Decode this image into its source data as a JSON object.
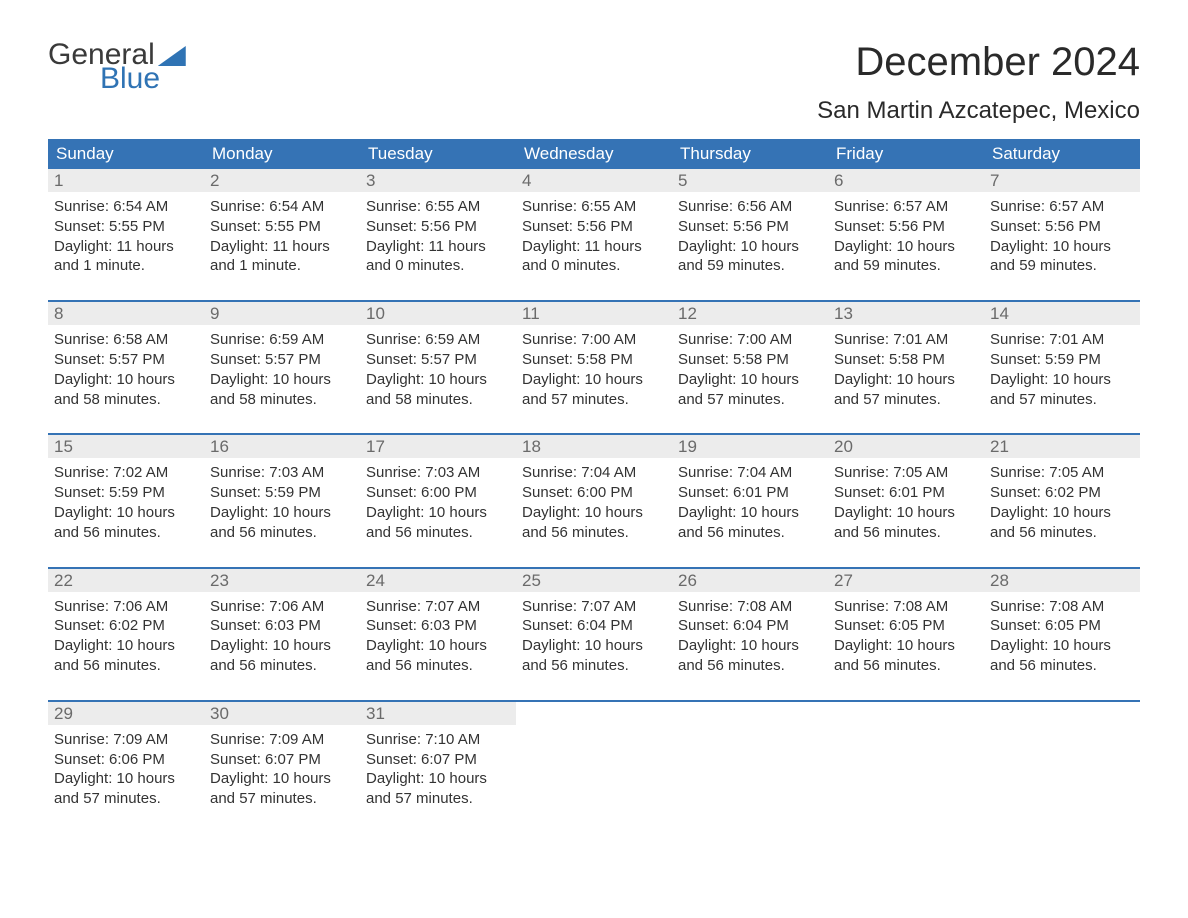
{
  "brand": {
    "word1": "General",
    "word2": "Blue",
    "text_color": "#3a3a3a",
    "accent_color": "#2f73b4"
  },
  "title": "December 2024",
  "location": "San Martin Azcatepec, Mexico",
  "colors": {
    "header_bg": "#3573b5",
    "header_text": "#ffffff",
    "daynum_bg": "#ececec",
    "daynum_text": "#6a6a6a",
    "body_text": "#333333",
    "page_bg": "#ffffff",
    "week_border": "#3573b5"
  },
  "fonts": {
    "title_size_pt": 30,
    "location_size_pt": 18,
    "weekday_size_pt": 13,
    "body_size_pt": 11
  },
  "weekdays": [
    "Sunday",
    "Monday",
    "Tuesday",
    "Wednesday",
    "Thursday",
    "Friday",
    "Saturday"
  ],
  "weeks": [
    [
      {
        "n": "1",
        "sunrise": "6:54 AM",
        "sunset": "5:55 PM",
        "day_h": "11",
        "day_m": "1 minute"
      },
      {
        "n": "2",
        "sunrise": "6:54 AM",
        "sunset": "5:55 PM",
        "day_h": "11",
        "day_m": "1 minute"
      },
      {
        "n": "3",
        "sunrise": "6:55 AM",
        "sunset": "5:56 PM",
        "day_h": "11",
        "day_m": "0 minutes"
      },
      {
        "n": "4",
        "sunrise": "6:55 AM",
        "sunset": "5:56 PM",
        "day_h": "11",
        "day_m": "0 minutes"
      },
      {
        "n": "5",
        "sunrise": "6:56 AM",
        "sunset": "5:56 PM",
        "day_h": "10",
        "day_m": "59 minutes"
      },
      {
        "n": "6",
        "sunrise": "6:57 AM",
        "sunset": "5:56 PM",
        "day_h": "10",
        "day_m": "59 minutes"
      },
      {
        "n": "7",
        "sunrise": "6:57 AM",
        "sunset": "5:56 PM",
        "day_h": "10",
        "day_m": "59 minutes"
      }
    ],
    [
      {
        "n": "8",
        "sunrise": "6:58 AM",
        "sunset": "5:57 PM",
        "day_h": "10",
        "day_m": "58 minutes"
      },
      {
        "n": "9",
        "sunrise": "6:59 AM",
        "sunset": "5:57 PM",
        "day_h": "10",
        "day_m": "58 minutes"
      },
      {
        "n": "10",
        "sunrise": "6:59 AM",
        "sunset": "5:57 PM",
        "day_h": "10",
        "day_m": "58 minutes"
      },
      {
        "n": "11",
        "sunrise": "7:00 AM",
        "sunset": "5:58 PM",
        "day_h": "10",
        "day_m": "57 minutes"
      },
      {
        "n": "12",
        "sunrise": "7:00 AM",
        "sunset": "5:58 PM",
        "day_h": "10",
        "day_m": "57 minutes"
      },
      {
        "n": "13",
        "sunrise": "7:01 AM",
        "sunset": "5:58 PM",
        "day_h": "10",
        "day_m": "57 minutes"
      },
      {
        "n": "14",
        "sunrise": "7:01 AM",
        "sunset": "5:59 PM",
        "day_h": "10",
        "day_m": "57 minutes"
      }
    ],
    [
      {
        "n": "15",
        "sunrise": "7:02 AM",
        "sunset": "5:59 PM",
        "day_h": "10",
        "day_m": "56 minutes"
      },
      {
        "n": "16",
        "sunrise": "7:03 AM",
        "sunset": "5:59 PM",
        "day_h": "10",
        "day_m": "56 minutes"
      },
      {
        "n": "17",
        "sunrise": "7:03 AM",
        "sunset": "6:00 PM",
        "day_h": "10",
        "day_m": "56 minutes"
      },
      {
        "n": "18",
        "sunrise": "7:04 AM",
        "sunset": "6:00 PM",
        "day_h": "10",
        "day_m": "56 minutes"
      },
      {
        "n": "19",
        "sunrise": "7:04 AM",
        "sunset": "6:01 PM",
        "day_h": "10",
        "day_m": "56 minutes"
      },
      {
        "n": "20",
        "sunrise": "7:05 AM",
        "sunset": "6:01 PM",
        "day_h": "10",
        "day_m": "56 minutes"
      },
      {
        "n": "21",
        "sunrise": "7:05 AM",
        "sunset": "6:02 PM",
        "day_h": "10",
        "day_m": "56 minutes"
      }
    ],
    [
      {
        "n": "22",
        "sunrise": "7:06 AM",
        "sunset": "6:02 PM",
        "day_h": "10",
        "day_m": "56 minutes"
      },
      {
        "n": "23",
        "sunrise": "7:06 AM",
        "sunset": "6:03 PM",
        "day_h": "10",
        "day_m": "56 minutes"
      },
      {
        "n": "24",
        "sunrise": "7:07 AM",
        "sunset": "6:03 PM",
        "day_h": "10",
        "day_m": "56 minutes"
      },
      {
        "n": "25",
        "sunrise": "7:07 AM",
        "sunset": "6:04 PM",
        "day_h": "10",
        "day_m": "56 minutes"
      },
      {
        "n": "26",
        "sunrise": "7:08 AM",
        "sunset": "6:04 PM",
        "day_h": "10",
        "day_m": "56 minutes"
      },
      {
        "n": "27",
        "sunrise": "7:08 AM",
        "sunset": "6:05 PM",
        "day_h": "10",
        "day_m": "56 minutes"
      },
      {
        "n": "28",
        "sunrise": "7:08 AM",
        "sunset": "6:05 PM",
        "day_h": "10",
        "day_m": "56 minutes"
      }
    ],
    [
      {
        "n": "29",
        "sunrise": "7:09 AM",
        "sunset": "6:06 PM",
        "day_h": "10",
        "day_m": "57 minutes"
      },
      {
        "n": "30",
        "sunrise": "7:09 AM",
        "sunset": "6:07 PM",
        "day_h": "10",
        "day_m": "57 minutes"
      },
      {
        "n": "31",
        "sunrise": "7:10 AM",
        "sunset": "6:07 PM",
        "day_h": "10",
        "day_m": "57 minutes"
      },
      null,
      null,
      null,
      null
    ]
  ],
  "labels": {
    "sunrise": "Sunrise: ",
    "sunset": "Sunset: ",
    "daylight": "Daylight: ",
    "hours": " hours",
    "and": "and "
  }
}
